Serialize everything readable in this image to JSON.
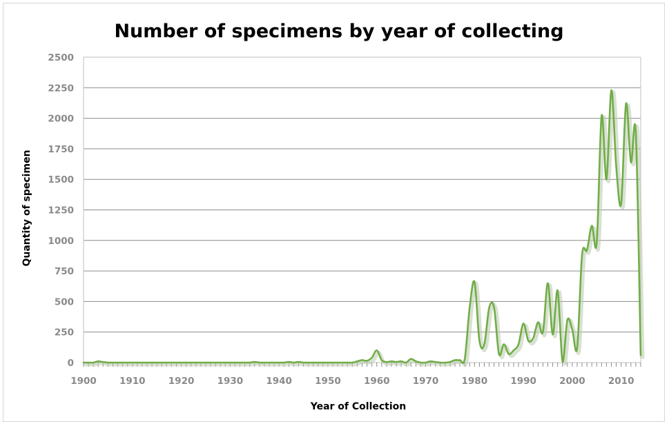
{
  "chart_data": {
    "type": "line",
    "title": "Number of specimens by year of collecting",
    "xlabel": "Year of Collection",
    "ylabel": "Quantity of specimen",
    "xlim": [
      1900,
      2014
    ],
    "ylim": [
      0,
      2500
    ],
    "x_ticks": [
      1900,
      1910,
      1920,
      1930,
      1940,
      1950,
      1960,
      1970,
      1980,
      1990,
      2000,
      2010
    ],
    "y_ticks": [
      0,
      250,
      500,
      750,
      1000,
      1250,
      1500,
      1750,
      2000,
      2250,
      2500
    ],
    "grid": true,
    "legend": "none",
    "line_color": "#70ad47",
    "series": [
      {
        "x": [
          1900,
          1901,
          1902,
          1903,
          1904,
          1905,
          1906,
          1907,
          1908,
          1909,
          1910,
          1911,
          1912,
          1913,
          1914,
          1915,
          1916,
          1917,
          1918,
          1919,
          1920,
          1921,
          1922,
          1923,
          1924,
          1925,
          1926,
          1927,
          1928,
          1929,
          1930,
          1931,
          1932,
          1933,
          1934,
          1935,
          1936,
          1937,
          1938,
          1939,
          1940,
          1941,
          1942,
          1943,
          1944,
          1945,
          1946,
          1947,
          1948,
          1949,
          1950,
          1951,
          1952,
          1953,
          1954,
          1955,
          1956,
          1957,
          1958,
          1959,
          1960,
          1961,
          1962,
          1963,
          1964,
          1965,
          1966,
          1967,
          1968,
          1969,
          1970,
          1971,
          1972,
          1973,
          1974,
          1975,
          1976,
          1977,
          1978,
          1979,
          1980,
          1981,
          1982,
          1983,
          1984,
          1985,
          1986,
          1987,
          1988,
          1989,
          1990,
          1991,
          1992,
          1993,
          1994,
          1995,
          1996,
          1997,
          1998,
          1999,
          2000,
          2001,
          2002,
          2003,
          2004,
          2005,
          2006,
          2007,
          2008,
          2009,
          2010,
          2011,
          2012,
          2013,
          2014
        ],
        "values": [
          0,
          0,
          0,
          10,
          5,
          0,
          0,
          0,
          0,
          0,
          0,
          0,
          0,
          0,
          0,
          0,
          0,
          0,
          0,
          0,
          0,
          0,
          0,
          0,
          0,
          0,
          0,
          0,
          0,
          0,
          0,
          0,
          0,
          0,
          0,
          5,
          0,
          0,
          0,
          0,
          0,
          0,
          5,
          0,
          5,
          0,
          0,
          0,
          0,
          0,
          0,
          0,
          0,
          0,
          0,
          0,
          10,
          20,
          15,
          40,
          100,
          20,
          5,
          10,
          5,
          10,
          0,
          30,
          10,
          0,
          0,
          10,
          5,
          0,
          0,
          5,
          20,
          20,
          30,
          450,
          660,
          180,
          150,
          450,
          450,
          70,
          150,
          70,
          100,
          150,
          320,
          180,
          200,
          330,
          250,
          650,
          230,
          590,
          10,
          350,
          270,
          120,
          880,
          920,
          1120,
          980,
          2020,
          1500,
          2230,
          1600,
          1300,
          2120,
          1640,
          1880,
          60
        ]
      }
    ]
  }
}
